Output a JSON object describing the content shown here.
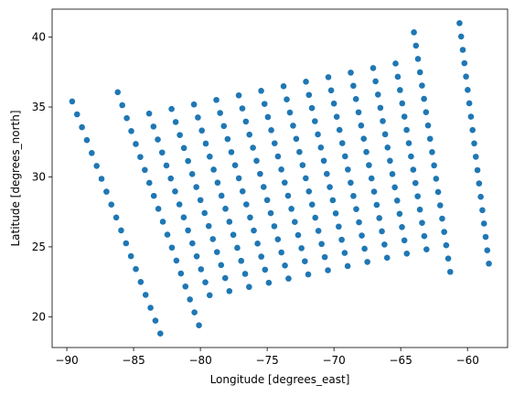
{
  "chart_data": {
    "type": "scatter",
    "title": "",
    "xlabel": "Longitude [degrees_east]",
    "ylabel": "Latitude [degrees_north]",
    "xlim": [
      -91.1,
      -57.0
    ],
    "ylim": [
      17.8,
      42.0
    ],
    "xticks": [
      -90,
      -85,
      -80,
      -75,
      -70,
      -65,
      -60
    ],
    "yticks": [
      20,
      25,
      30,
      35,
      40
    ],
    "xtick_labels": [
      "−90",
      "−85",
      "−80",
      "−75",
      "−70",
      "−65",
      "−60"
    ],
    "ytick_labels": [
      "20",
      "25",
      "30",
      "35",
      "40"
    ],
    "grid": false,
    "legend": "none",
    "marker_color": "#1f77b4",
    "grid_rows": 19,
    "grid_cols": 18,
    "corners": {
      "top_left": [
        -89.6,
        35.4
      ],
      "top_right": [
        -60.6,
        41.0
      ],
      "bottom_left": [
        -83.0,
        18.8
      ],
      "bottom_right": [
        -58.4,
        23.8
      ]
    },
    "shown_columns": [
      0,
      2,
      3,
      4,
      5,
      6,
      7,
      8,
      9,
      10,
      11,
      12,
      13,
      14,
      15,
      17
    ],
    "shown_rows_inner": [
      0,
      1,
      2,
      3,
      4,
      5,
      6,
      7,
      8,
      9,
      10,
      11,
      12,
      13,
      14
    ]
  }
}
